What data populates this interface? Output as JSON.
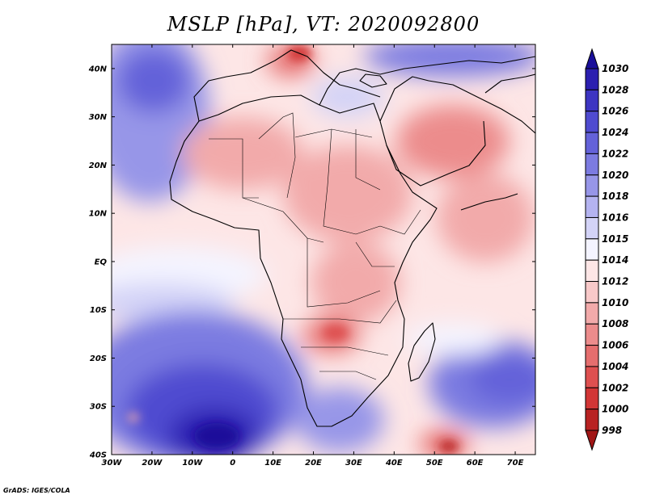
{
  "title": "MSLP [hPa], VT: 2020092800",
  "footer": "GrADS: IGES/COLA",
  "map": {
    "variable": "Mean sea level pressure",
    "units": "hPa",
    "valid_time": "2020092800",
    "lon_range": [
      -30,
      75
    ],
    "lat_range": [
      -40,
      45
    ],
    "lat_ticks": [
      {
        "value": 40,
        "label": "40N"
      },
      {
        "value": 30,
        "label": "30N"
      },
      {
        "value": 20,
        "label": "20N"
      },
      {
        "value": 10,
        "label": "10N"
      },
      {
        "value": 0,
        "label": "EQ"
      },
      {
        "value": -10,
        "label": "10S"
      },
      {
        "value": -20,
        "label": "20S"
      },
      {
        "value": -30,
        "label": "30S"
      },
      {
        "value": -40,
        "label": "40S"
      }
    ],
    "lon_ticks": [
      {
        "value": -30,
        "label": "30W"
      },
      {
        "value": -20,
        "label": "20W"
      },
      {
        "value": -10,
        "label": "10W"
      },
      {
        "value": 0,
        "label": "0"
      },
      {
        "value": 10,
        "label": "10E"
      },
      {
        "value": 20,
        "label": "20E"
      },
      {
        "value": 30,
        "label": "30E"
      },
      {
        "value": 40,
        "label": "40E"
      },
      {
        "value": 50,
        "label": "50E"
      },
      {
        "value": 60,
        "label": "60E"
      },
      {
        "value": 70,
        "label": "70E"
      }
    ]
  },
  "colorbar": {
    "max_label": "1030",
    "levels": [
      {
        "label": "1028",
        "color": "#2b1fb0"
      },
      {
        "label": "1026",
        "color": "#3d35c2"
      },
      {
        "label": "1024",
        "color": "#4f4bd0"
      },
      {
        "label": "1022",
        "color": "#6462d9"
      },
      {
        "label": "1020",
        "color": "#7c7be1"
      },
      {
        "label": "1018",
        "color": "#9796e8"
      },
      {
        "label": "1016",
        "color": "#b4b3f0"
      },
      {
        "label": "1015",
        "color": "#d3d3f7"
      },
      {
        "label": "1014",
        "color": "#f4f4ff"
      },
      {
        "label": "1012",
        "color": "#fde6e6"
      },
      {
        "label": "1010",
        "color": "#f8c9c9"
      },
      {
        "label": "1008",
        "color": "#f2aaaa"
      },
      {
        "label": "1006",
        "color": "#ec8c8c"
      },
      {
        "label": "1004",
        "color": "#e56e6e"
      },
      {
        "label": "1002",
        "color": "#de5050"
      },
      {
        "label": "1000",
        "color": "#d23636"
      },
      {
        "label": "998",
        "color": "#b82222"
      }
    ],
    "top_arrow_color": "#1a0f9a",
    "bottom_arrow_color": "#a11616"
  }
}
